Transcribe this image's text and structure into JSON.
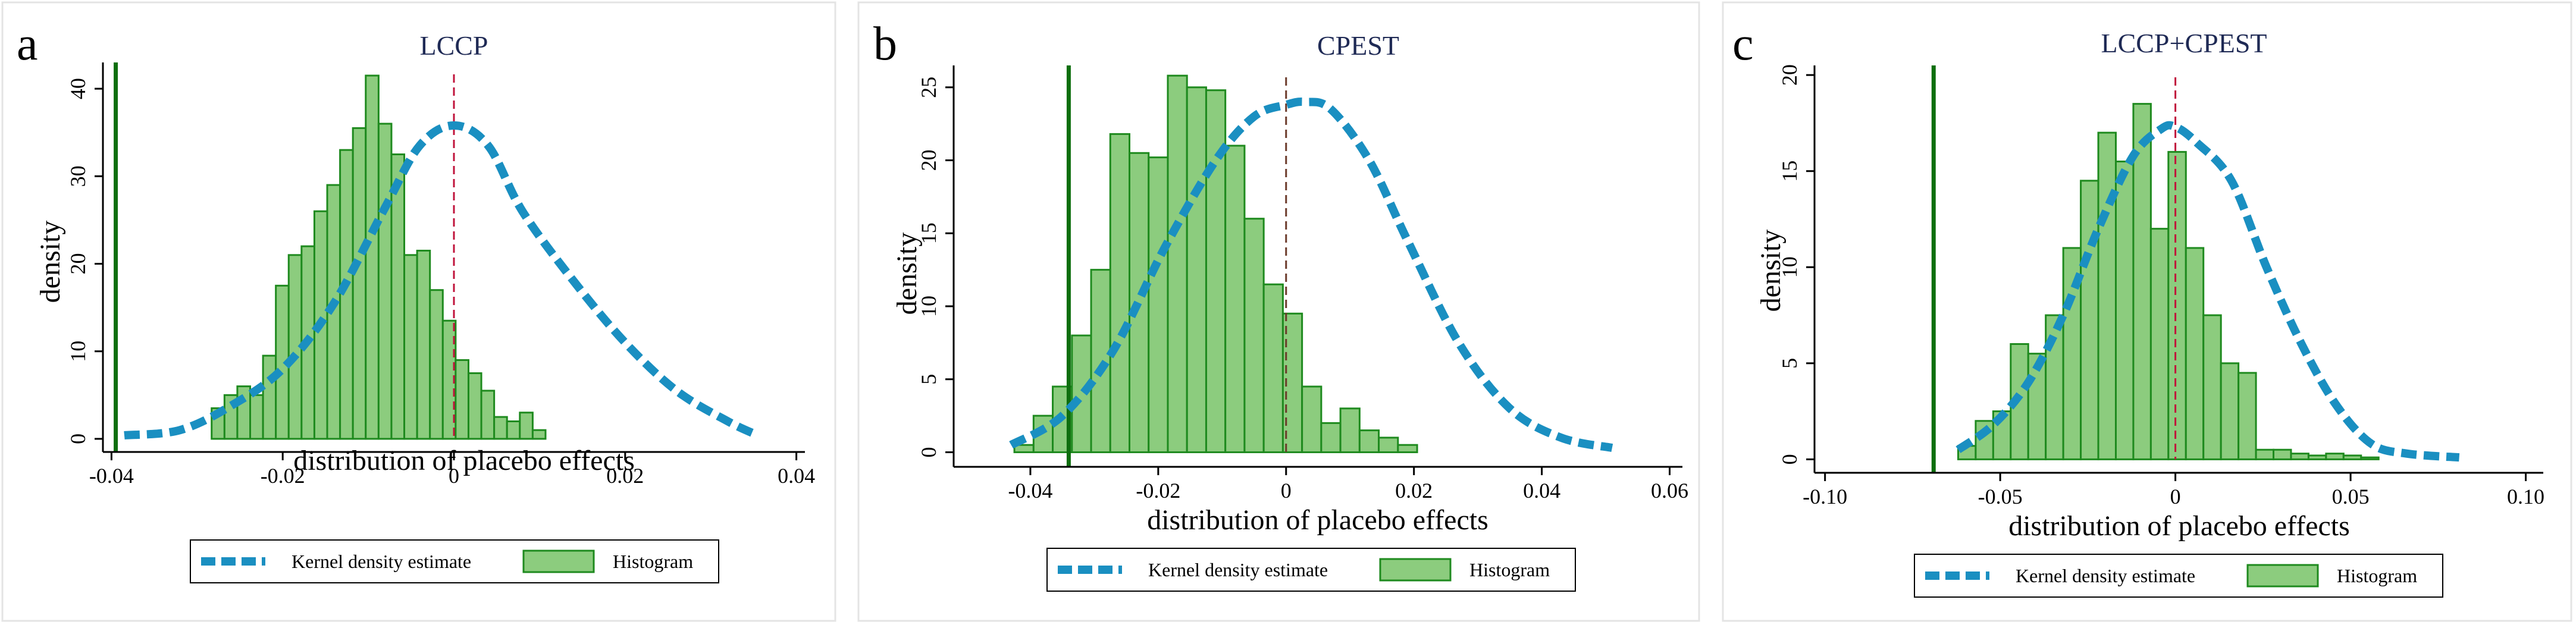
{
  "figure": {
    "x_axis_label": "distribution of placebo effects",
    "y_axis_label": "density",
    "legend": {
      "kde_label": "Kernel density estimate",
      "hist_label": "Histogram"
    },
    "colors": {
      "bar_fill": "#8ccc7e",
      "bar_stroke": "#1e8a1e",
      "kde": "#1a8fc1",
      "true_effect_line": "#0e6e0e",
      "zero_line": "#c0143c",
      "axis": "#000000",
      "title": "#1f2a55"
    }
  },
  "chart_data": [
    {
      "panel_letter": "a",
      "type": "bar",
      "title": "LCCP",
      "xlabel": "distribution of placebo effects",
      "ylabel": "density",
      "xlim": [
        -0.041,
        0.041
      ],
      "ylim": [
        -1.5,
        43
      ],
      "xticks": [
        -0.04,
        -0.02,
        0,
        0.02,
        0.04
      ],
      "xtick_labels": [
        "-0.04",
        "-0.02",
        "0",
        "0.02",
        "0.04"
      ],
      "yticks": [
        0,
        10,
        20,
        30,
        40
      ],
      "ytick_labels": [
        "0",
        "10",
        "20",
        "30",
        "40"
      ],
      "bin_start": -0.0283,
      "bin_width": 0.0015,
      "values": [
        3.5,
        5.0,
        6.0,
        5.0,
        9.5,
        17.5,
        21.0,
        22.0,
        26.0,
        29.0,
        33.0,
        35.5,
        41.5,
        36.0,
        32.5,
        21.0,
        21.5,
        17.0,
        13.5,
        9.0,
        7.5,
        5.5,
        2.5,
        2.0,
        3.0,
        1.0
      ],
      "kde": {
        "x": [
          -0.0385,
          -0.032,
          -0.026,
          -0.02,
          -0.014,
          -0.008,
          -0.004,
          0.0,
          0.004,
          0.008,
          0.014,
          0.02,
          0.026,
          0.032,
          0.0355
        ],
        "y": [
          0.4,
          1.0,
          3.8,
          8.0,
          15.5,
          26.5,
          33.5,
          35.8,
          33.5,
          26.0,
          18.0,
          11.0,
          5.5,
          2.0,
          0.4
        ]
      },
      "true_effect": -0.0395,
      "zero_line": 0
    },
    {
      "panel_letter": "b",
      "type": "bar",
      "title": "CPEST",
      "xlabel": "distribution of placebo effects",
      "ylabel": "density",
      "xlim": [
        -0.052,
        0.062
      ],
      "ylim": [
        -1.0,
        26.5
      ],
      "xticks": [
        -0.04,
        -0.02,
        0,
        0.02,
        0.04,
        0.06
      ],
      "xtick_labels": [
        "-0.04",
        "-0.02",
        "0",
        "0.02",
        "0.04",
        "0.06"
      ],
      "yticks": [
        0,
        5,
        10,
        15,
        20,
        25
      ],
      "ytick_labels": [
        "0",
        "5",
        "10",
        "15",
        "20",
        "25"
      ],
      "bin_start": -0.0425,
      "bin_width": 0.003,
      "values": [
        0.5,
        2.5,
        4.5,
        8.0,
        12.5,
        21.8,
        20.5,
        20.2,
        25.8,
        25.0,
        24.8,
        21.0,
        16.0,
        11.5,
        9.5,
        4.5,
        2.0,
        3.0,
        1.5,
        1.0,
        0.5
      ],
      "kde": {
        "x": [
          -0.043,
          -0.035,
          -0.027,
          -0.019,
          -0.011,
          -0.005,
          0.0,
          0.003,
          0.007,
          0.013,
          0.019,
          0.027,
          0.035,
          0.043,
          0.051
        ],
        "y": [
          0.5,
          2.5,
          7.0,
          14.0,
          20.0,
          23.0,
          23.8,
          24.0,
          23.5,
          20.0,
          14.5,
          7.5,
          3.0,
          1.0,
          0.3
        ]
      },
      "true_effect": -0.034,
      "zero_line": 0
    },
    {
      "panel_letter": "c",
      "type": "bar",
      "title": "LCCP+CPEST",
      "xlabel": "distribution of placebo effects",
      "ylabel": "density",
      "xlim": [
        -0.103,
        0.105
      ],
      "ylim": [
        -0.7,
        20.5
      ],
      "xticks": [
        -0.1,
        -0.05,
        0,
        0.05,
        0.1
      ],
      "xtick_labels": [
        "-0.10",
        "-0.05",
        "0",
        "0.05",
        "0.10"
      ],
      "yticks": [
        0,
        5,
        10,
        15,
        20
      ],
      "ytick_labels": [
        "0",
        "5",
        "10",
        "15",
        "20"
      ],
      "bin_start": -0.062,
      "bin_width": 0.005,
      "values": [
        0.7,
        2.0,
        2.5,
        6.0,
        5.5,
        7.5,
        11.0,
        14.5,
        17.0,
        15.5,
        18.5,
        12.0,
        16.0,
        11.0,
        7.5,
        5.0,
        4.5,
        0.5,
        0.5,
        0.3,
        0.2,
        0.3,
        0.2,
        0.1
      ],
      "kde": {
        "x": [
          -0.062,
          -0.052,
          -0.042,
          -0.032,
          -0.022,
          -0.012,
          -0.004,
          0.0,
          0.006,
          0.016,
          0.026,
          0.036,
          0.046,
          0.056,
          0.066,
          0.081
        ],
        "y": [
          0.5,
          1.8,
          4.0,
          7.5,
          12.0,
          15.8,
          17.2,
          17.3,
          16.5,
          14.5,
          10.0,
          6.0,
          2.8,
          0.8,
          0.3,
          0.1
        ]
      },
      "true_effect": -0.069,
      "zero_line": 0
    }
  ]
}
